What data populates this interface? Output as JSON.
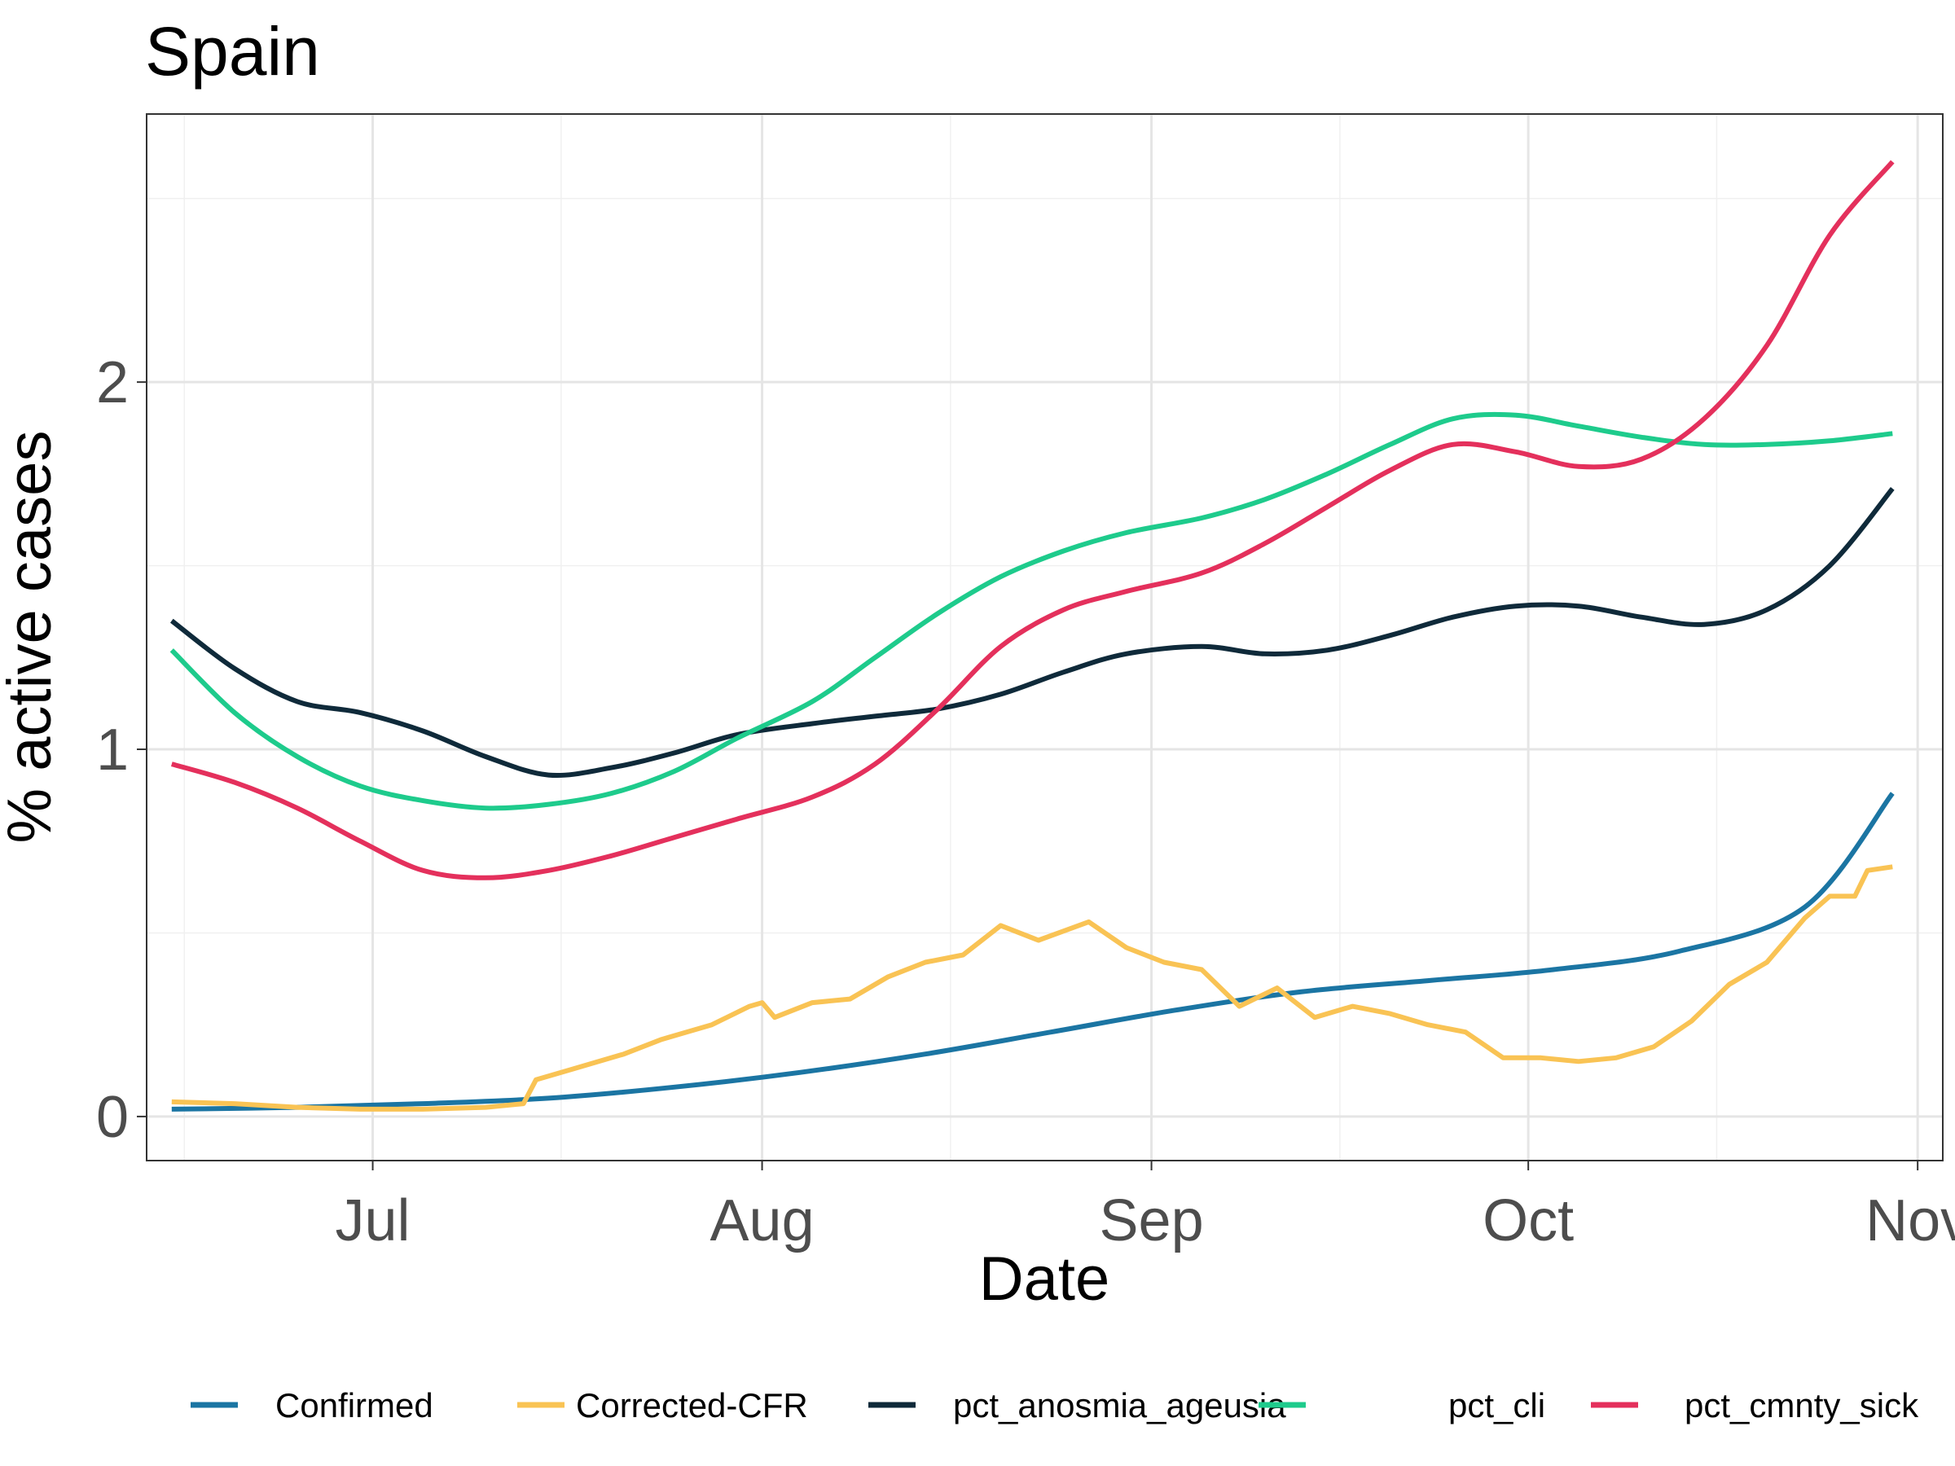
{
  "chart_data": {
    "type": "line",
    "title": "Spain",
    "xlabel": "Date",
    "ylabel": "% active cases",
    "x_type": "date",
    "xlim": [
      "2020-06-13",
      "2020-11-03"
    ],
    "ylim": [
      -0.12,
      2.73
    ],
    "x_ticks": [
      {
        "date": "2020-07-01",
        "label": "Jul"
      },
      {
        "date": "2020-08-01",
        "label": "Aug"
      },
      {
        "date": "2020-09-01",
        "label": "Sep"
      },
      {
        "date": "2020-10-01",
        "label": "Oct"
      },
      {
        "date": "2020-11-01",
        "label": "Nov"
      }
    ],
    "x_minor_ticks": [
      "2020-06-16",
      "2020-07-16",
      "2020-08-16",
      "2020-09-16",
      "2020-10-16"
    ],
    "y_ticks": [
      0,
      1,
      2
    ],
    "y_minor_ticks": [
      0.5,
      1.5,
      2.5
    ],
    "grid": true,
    "legend_position": "bottom",
    "series": [
      {
        "name": "Confirmed",
        "color": "#1b75a3",
        "points": [
          [
            "2020-06-15",
            0.02
          ],
          [
            "2020-06-25",
            0.025
          ],
          [
            "2020-07-05",
            0.035
          ],
          [
            "2020-07-15",
            0.05
          ],
          [
            "2020-07-25",
            0.08
          ],
          [
            "2020-08-04",
            0.12
          ],
          [
            "2020-08-14",
            0.17
          ],
          [
            "2020-08-24",
            0.23
          ],
          [
            "2020-09-03",
            0.29
          ],
          [
            "2020-09-13",
            0.34
          ],
          [
            "2020-09-23",
            0.37
          ],
          [
            "2020-10-03",
            0.4
          ],
          [
            "2020-10-13",
            0.45
          ],
          [
            "2020-10-23",
            0.57
          ],
          [
            "2020-10-30",
            0.88
          ]
        ]
      },
      {
        "name": "Corrected-CFR",
        "color": "#f9c354",
        "points": [
          [
            "2020-06-15",
            0.04
          ],
          [
            "2020-06-20",
            0.035
          ],
          [
            "2020-06-25",
            0.025
          ],
          [
            "2020-06-30",
            0.02
          ],
          [
            "2020-07-05",
            0.02
          ],
          [
            "2020-07-10",
            0.025
          ],
          [
            "2020-07-13",
            0.035
          ],
          [
            "2020-07-14",
            0.1
          ],
          [
            "2020-07-17",
            0.13
          ],
          [
            "2020-07-21",
            0.17
          ],
          [
            "2020-07-24",
            0.21
          ],
          [
            "2020-07-28",
            0.25
          ],
          [
            "2020-07-31",
            0.3
          ],
          [
            "2020-08-01",
            0.31
          ],
          [
            "2020-08-02",
            0.27
          ],
          [
            "2020-08-05",
            0.31
          ],
          [
            "2020-08-08",
            0.32
          ],
          [
            "2020-08-11",
            0.38
          ],
          [
            "2020-08-14",
            0.42
          ],
          [
            "2020-08-17",
            0.44
          ],
          [
            "2020-08-20",
            0.52
          ],
          [
            "2020-08-23",
            0.48
          ],
          [
            "2020-08-27",
            0.53
          ],
          [
            "2020-08-30",
            0.46
          ],
          [
            "2020-09-02",
            0.42
          ],
          [
            "2020-09-05",
            0.4
          ],
          [
            "2020-09-08",
            0.3
          ],
          [
            "2020-09-11",
            0.35
          ],
          [
            "2020-09-14",
            0.27
          ],
          [
            "2020-09-17",
            0.3
          ],
          [
            "2020-09-20",
            0.28
          ],
          [
            "2020-09-23",
            0.25
          ],
          [
            "2020-09-26",
            0.23
          ],
          [
            "2020-09-29",
            0.16
          ],
          [
            "2020-10-02",
            0.16
          ],
          [
            "2020-10-05",
            0.15
          ],
          [
            "2020-10-08",
            0.16
          ],
          [
            "2020-10-11",
            0.19
          ],
          [
            "2020-10-14",
            0.26
          ],
          [
            "2020-10-17",
            0.36
          ],
          [
            "2020-10-20",
            0.42
          ],
          [
            "2020-10-23",
            0.54
          ],
          [
            "2020-10-25",
            0.6
          ],
          [
            "2020-10-27",
            0.6
          ],
          [
            "2020-10-28",
            0.67
          ],
          [
            "2020-10-30",
            0.68
          ]
        ]
      },
      {
        "name": "pct_anosmia_ageusia",
        "color": "#0f2a3a",
        "points": [
          [
            "2020-06-15",
            1.35
          ],
          [
            "2020-06-20",
            1.22
          ],
          [
            "2020-06-25",
            1.13
          ],
          [
            "2020-06-30",
            1.1
          ],
          [
            "2020-07-05",
            1.05
          ],
          [
            "2020-07-10",
            0.98
          ],
          [
            "2020-07-15",
            0.93
          ],
          [
            "2020-07-20",
            0.95
          ],
          [
            "2020-07-25",
            0.99
          ],
          [
            "2020-07-30",
            1.04
          ],
          [
            "2020-08-05",
            1.07
          ],
          [
            "2020-08-10",
            1.09
          ],
          [
            "2020-08-15",
            1.11
          ],
          [
            "2020-08-20",
            1.15
          ],
          [
            "2020-08-25",
            1.21
          ],
          [
            "2020-08-30",
            1.26
          ],
          [
            "2020-09-05",
            1.28
          ],
          [
            "2020-09-10",
            1.26
          ],
          [
            "2020-09-15",
            1.27
          ],
          [
            "2020-09-20",
            1.31
          ],
          [
            "2020-09-25",
            1.36
          ],
          [
            "2020-09-30",
            1.39
          ],
          [
            "2020-10-05",
            1.39
          ],
          [
            "2020-10-10",
            1.36
          ],
          [
            "2020-10-15",
            1.34
          ],
          [
            "2020-10-20",
            1.38
          ],
          [
            "2020-10-25",
            1.5
          ],
          [
            "2020-10-30",
            1.71
          ]
        ]
      },
      {
        "name": "pct_cli",
        "color": "#1ecb8c",
        "points": [
          [
            "2020-06-15",
            1.27
          ],
          [
            "2020-06-20",
            1.1
          ],
          [
            "2020-06-25",
            0.98
          ],
          [
            "2020-06-30",
            0.9
          ],
          [
            "2020-07-05",
            0.86
          ],
          [
            "2020-07-10",
            0.84
          ],
          [
            "2020-07-15",
            0.85
          ],
          [
            "2020-07-20",
            0.88
          ],
          [
            "2020-07-25",
            0.94
          ],
          [
            "2020-07-30",
            1.03
          ],
          [
            "2020-08-05",
            1.13
          ],
          [
            "2020-08-10",
            1.25
          ],
          [
            "2020-08-15",
            1.37
          ],
          [
            "2020-08-20",
            1.47
          ],
          [
            "2020-08-25",
            1.54
          ],
          [
            "2020-08-30",
            1.59
          ],
          [
            "2020-09-05",
            1.63
          ],
          [
            "2020-09-10",
            1.68
          ],
          [
            "2020-09-15",
            1.75
          ],
          [
            "2020-09-20",
            1.83
          ],
          [
            "2020-09-25",
            1.9
          ],
          [
            "2020-09-30",
            1.91
          ],
          [
            "2020-10-05",
            1.88
          ],
          [
            "2020-10-10",
            1.85
          ],
          [
            "2020-10-15",
            1.83
          ],
          [
            "2020-10-20",
            1.83
          ],
          [
            "2020-10-25",
            1.84
          ],
          [
            "2020-10-30",
            1.86
          ]
        ]
      },
      {
        "name": "pct_cmnty_sick",
        "color": "#e4305c",
        "points": [
          [
            "2020-06-15",
            0.96
          ],
          [
            "2020-06-20",
            0.91
          ],
          [
            "2020-06-25",
            0.84
          ],
          [
            "2020-06-30",
            0.75
          ],
          [
            "2020-07-05",
            0.67
          ],
          [
            "2020-07-10",
            0.65
          ],
          [
            "2020-07-15",
            0.67
          ],
          [
            "2020-07-20",
            0.71
          ],
          [
            "2020-07-25",
            0.76
          ],
          [
            "2020-07-30",
            0.81
          ],
          [
            "2020-08-05",
            0.87
          ],
          [
            "2020-08-10",
            0.96
          ],
          [
            "2020-08-15",
            1.11
          ],
          [
            "2020-08-20",
            1.28
          ],
          [
            "2020-08-25",
            1.38
          ],
          [
            "2020-08-30",
            1.43
          ],
          [
            "2020-09-05",
            1.48
          ],
          [
            "2020-09-10",
            1.56
          ],
          [
            "2020-09-15",
            1.66
          ],
          [
            "2020-09-20",
            1.76
          ],
          [
            "2020-09-25",
            1.83
          ],
          [
            "2020-09-30",
            1.81
          ],
          [
            "2020-10-05",
            1.77
          ],
          [
            "2020-10-10",
            1.79
          ],
          [
            "2020-10-15",
            1.9
          ],
          [
            "2020-10-20",
            2.1
          ],
          [
            "2020-10-25",
            2.4
          ],
          [
            "2020-10-30",
            2.6
          ]
        ]
      }
    ]
  }
}
